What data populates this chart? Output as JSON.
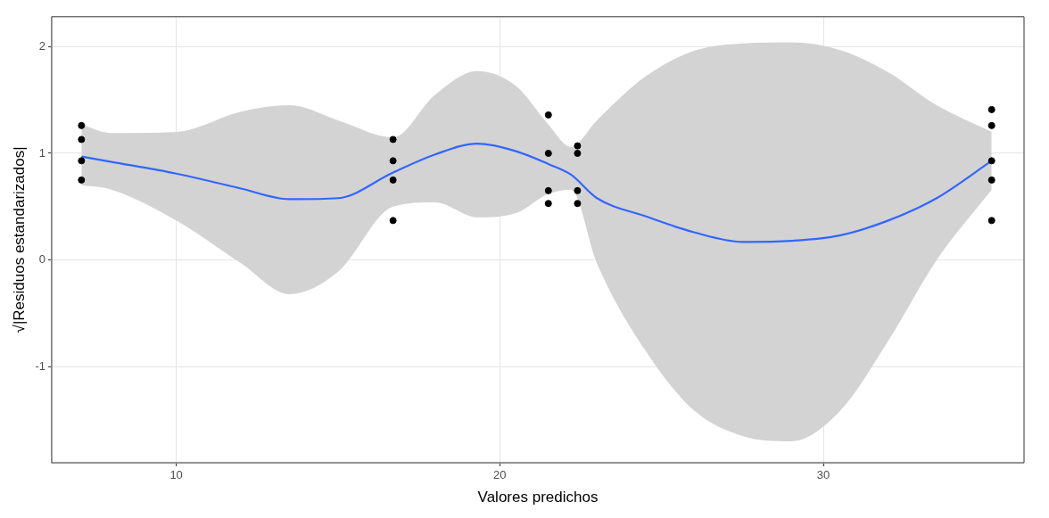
{
  "chart_data": {
    "type": "scatter",
    "xlabel": "Valores predichos",
    "ylabel": "√|Residuos estandarizados|",
    "xlim": [
      6.15,
      36.2
    ],
    "ylim": [
      -1.9,
      2.28
    ],
    "xticks": [
      10,
      20,
      30
    ],
    "yticks": [
      -1,
      0,
      1,
      2
    ],
    "grid": true,
    "legend": false,
    "series": [
      {
        "color": "#000000",
        "marker": "circle",
        "x": [
          7.07,
          7.07,
          7.07,
          7.07,
          16.7,
          16.7,
          16.7,
          16.7,
          21.5,
          21.5,
          21.5,
          21.5,
          22.4,
          22.4,
          22.4,
          22.4,
          35.2,
          35.2,
          35.2,
          35.2,
          35.2
        ],
        "values": [
          1.26,
          1.13,
          0.93,
          0.75,
          1.13,
          0.93,
          0.75,
          0.37,
          1.36,
          1.0,
          0.65,
          0.53,
          1.07,
          1.0,
          0.65,
          0.53,
          1.41,
          1.26,
          0.93,
          0.75,
          0.37
        ]
      },
      {
        "type": "line",
        "color": "#3366ff",
        "marker": "none",
        "x": [
          7.07,
          8,
          10,
          12,
          13.5,
          15,
          16.7,
          18,
          19.3,
          20.5,
          21.5,
          22.2,
          23,
          24.5,
          26,
          27.5,
          29,
          30.5,
          32,
          33.5,
          35.2
        ],
        "values": [
          0.97,
          0.92,
          0.81,
          0.67,
          0.57,
          0.58,
          0.82,
          0.99,
          1.09,
          1.02,
          0.9,
          0.8,
          0.58,
          0.41,
          0.26,
          0.17,
          0.18,
          0.23,
          0.37,
          0.58,
          0.93
        ],
        "lower": [
          0.7,
          0.66,
          0.37,
          -0.03,
          -0.32,
          -0.11,
          0.5,
          0.54,
          0.4,
          0.44,
          0.62,
          0.66,
          -0.03,
          -0.85,
          -1.41,
          -1.65,
          -1.7,
          -1.42,
          -0.76,
          0.0,
          0.66
        ],
        "upper": [
          1.27,
          1.19,
          1.2,
          1.39,
          1.45,
          1.31,
          1.15,
          1.55,
          1.77,
          1.63,
          1.27,
          1.06,
          1.31,
          1.72,
          1.96,
          2.03,
          2.04,
          1.97,
          1.76,
          1.45,
          1.2
        ]
      }
    ]
  }
}
